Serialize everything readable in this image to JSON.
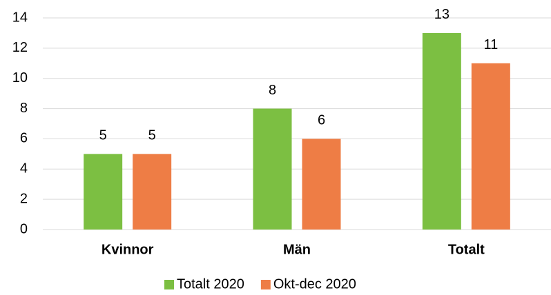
{
  "chart_data": {
    "type": "bar",
    "categories": [
      "Kvinnor",
      "Män",
      "Totalt"
    ],
    "series": [
      {
        "name": "Totalt 2020",
        "color": "#7cbf42",
        "values": [
          5,
          8,
          13
        ]
      },
      {
        "name": "Okt-dec 2020",
        "color": "#ee7d45",
        "values": [
          5,
          6,
          11
        ]
      }
    ],
    "ylim": [
      0,
      14
    ],
    "yticks": [
      0,
      2,
      4,
      6,
      8,
      10,
      12,
      14
    ],
    "grid": true,
    "legend": "bottom"
  }
}
